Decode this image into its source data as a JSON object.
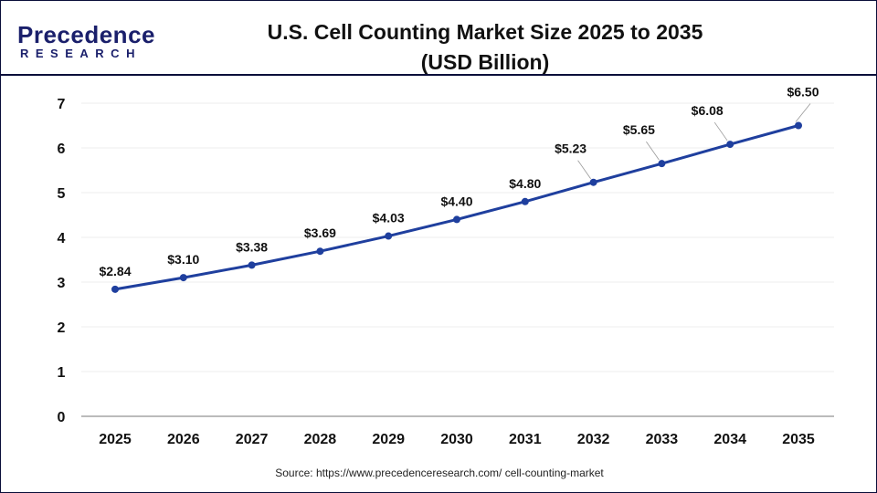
{
  "logo": {
    "line1": "Precedence",
    "line2": "RESEARCH"
  },
  "title": {
    "line1": "U.S. Cell Counting Market Size 2025 to 2035",
    "line2": "(USD Billion)"
  },
  "source": "Source: https://www.precedenceresearch.com/ cell-counting-market",
  "chart_data": {
    "type": "line",
    "title": "U.S. Cell Counting Market Size 2025 to 2035 (USD Billion)",
    "categories": [
      "2025",
      "2026",
      "2027",
      "2028",
      "2029",
      "2030",
      "2031",
      "2032",
      "2033",
      "2034",
      "2035"
    ],
    "values": [
      2.84,
      3.1,
      3.38,
      3.69,
      4.03,
      4.4,
      4.8,
      5.23,
      5.65,
      6.08,
      6.5
    ],
    "data_labels": [
      "$2.84",
      "$3.10",
      "$3.38",
      "$3.69",
      "$4.03",
      "$4.40",
      "$4.80",
      "$5.23",
      "$5.65",
      "$6.08",
      "$6.50"
    ],
    "ylim": [
      0,
      7
    ],
    "yticks": [
      0,
      1,
      2,
      3,
      4,
      5,
      6,
      7
    ],
    "grid": true,
    "line_color": "#1f3f9e"
  }
}
